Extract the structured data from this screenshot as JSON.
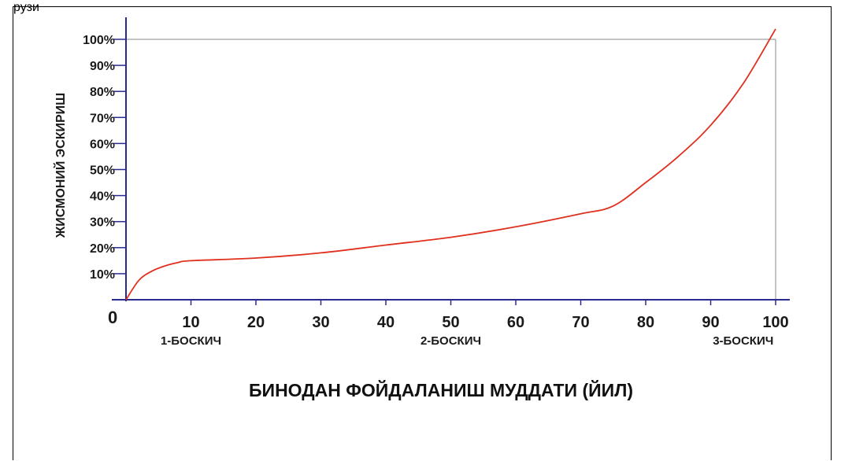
{
  "header_fragment": "рузи",
  "chart_data": {
    "type": "line",
    "xlabel": "БИНОДАН ФОЙДАЛАНИШ МУДДАТИ (ЙИЛ)",
    "ylabel": "ЖИСМОНИЙ ЭСКИРИШ",
    "origin_label": "0",
    "xlim": [
      0,
      100
    ],
    "ylim": [
      0,
      100
    ],
    "x_ticks": [
      "10",
      "20",
      "30",
      "40",
      "50",
      "60",
      "70",
      "80",
      "90",
      "100"
    ],
    "y_ticks": [
      "10%",
      "20%",
      "30%",
      "40%",
      "50%",
      "60%",
      "70%",
      "80%",
      "90%",
      "100%"
    ],
    "stages": [
      {
        "label": "1-БОСКИЧ",
        "x": 10
      },
      {
        "label": "2-БОСКИЧ",
        "x": 50
      },
      {
        "label": "3-БОСКИЧ",
        "x": 95
      }
    ],
    "series": [
      {
        "x": [
          0,
          2,
          4,
          6,
          8,
          10,
          20,
          30,
          40,
          50,
          60,
          70,
          75,
          80,
          85,
          90,
          95,
          100
        ],
        "y": [
          0,
          7.5,
          11,
          13,
          14.3,
          15,
          16,
          18,
          21,
          24,
          28,
          33,
          36,
          45,
          55,
          67,
          83,
          104
        ]
      }
    ],
    "colors": {
      "line": "#e0301e",
      "axis": "#2a2a8f",
      "grid": "#888888"
    }
  }
}
